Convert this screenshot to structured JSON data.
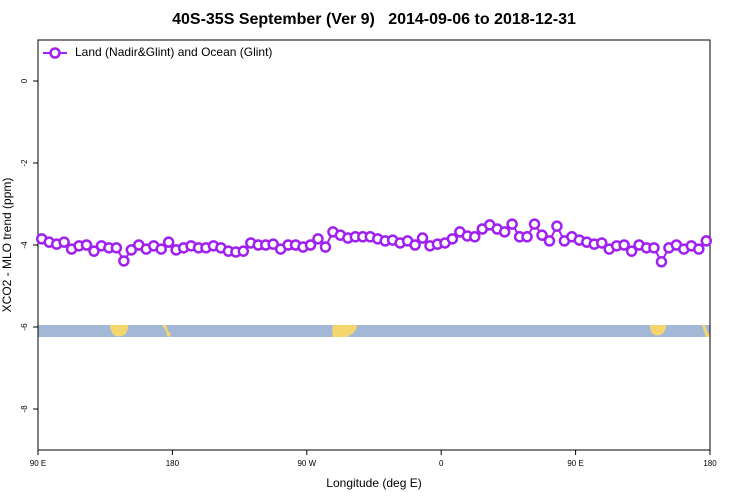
{
  "chart_data": {
    "type": "line",
    "title": "40S-35S September (Ver 9)   2014-09-06 to 2018-12-31",
    "x_label": "Longitude (deg E)",
    "y_label": "XCO2 - MLO trend (ppm)",
    "xlim": [
      90,
      540
    ],
    "xticks": [
      {
        "value": 90,
        "label": "90 E"
      },
      {
        "value": 180,
        "label": "180"
      },
      {
        "value": 270,
        "label": "90 W"
      },
      {
        "value": 360,
        "label": "0"
      },
      {
        "value": 450,
        "label": "90 E"
      },
      {
        "value": 540,
        "label": "180"
      }
    ],
    "ylim": [
      -9,
      1
    ],
    "yticks": [
      0,
      -2,
      -4,
      -6,
      -8
    ],
    "legend": "top-left",
    "x": [
      92.5,
      97.5,
      102.5,
      107.5,
      112.5,
      117.5,
      122.5,
      127.5,
      132.5,
      137.5,
      142.5,
      147.5,
      152.5,
      157.5,
      162.5,
      167.5,
      172.5,
      177.5,
      182.5,
      187.5,
      192.5,
      197.5,
      202.5,
      207.5,
      212.5,
      217.5,
      222.5,
      227.5,
      232.5,
      237.5,
      242.5,
      247.5,
      252.5,
      257.5,
      262.5,
      267.5,
      272.5,
      277.5,
      282.5,
      287.5,
      292.5,
      297.5,
      302.5,
      307.5,
      312.5,
      317.5,
      322.5,
      327.5,
      332.5,
      337.5,
      342.5,
      347.5,
      352.5,
      357.5,
      362.5,
      367.5,
      372.5,
      377.5,
      382.5,
      387.5,
      392.5,
      397.5,
      402.5,
      407.5,
      412.5,
      417.5,
      422.5,
      427.5,
      432.5,
      437.5,
      442.5,
      447.5,
      452.5,
      457.5,
      462.5,
      467.5,
      472.5,
      477.5,
      482.5,
      487.5,
      492.5,
      497.5,
      502.5,
      507.5,
      512.5,
      517.5,
      522.5,
      527.5,
      532.5,
      537.5
    ],
    "series": [
      {
        "name": "Land (Nadir&Glint) and Ocean (Glint)",
        "color": "#a020f0",
        "values": [
          -3.85,
          -3.93,
          -3.98,
          -3.93,
          -4.1,
          -4.02,
          -4.0,
          -4.15,
          -4.02,
          -4.07,
          -4.07,
          -4.39,
          -4.12,
          -4.0,
          -4.1,
          -4.02,
          -4.1,
          -3.93,
          -4.12,
          -4.07,
          -4.02,
          -4.07,
          -4.07,
          -4.02,
          -4.07,
          -4.15,
          -4.17,
          -4.15,
          -3.95,
          -4.0,
          -4.0,
          -3.98,
          -4.1,
          -4.0,
          -4.0,
          -4.05,
          -4.0,
          -3.85,
          -4.05,
          -3.68,
          -3.76,
          -3.83,
          -3.8,
          -3.8,
          -3.8,
          -3.85,
          -3.9,
          -3.88,
          -3.95,
          -3.9,
          -4.0,
          -3.83,
          -4.02,
          -3.98,
          -3.95,
          -3.85,
          -3.68,
          -3.78,
          -3.8,
          -3.61,
          -3.51,
          -3.61,
          -3.68,
          -3.49,
          -3.8,
          -3.8,
          -3.49,
          -3.76,
          -3.9,
          -3.54,
          -3.9,
          -3.8,
          -3.88,
          -3.93,
          -3.98,
          -3.95,
          -4.1,
          -4.02,
          -4.0,
          -4.15,
          -4.0,
          -4.07,
          -4.07,
          -4.41,
          -4.07,
          -4.0,
          -4.1,
          -4.02,
          -4.1,
          -3.9
        ]
      }
    ]
  }
}
